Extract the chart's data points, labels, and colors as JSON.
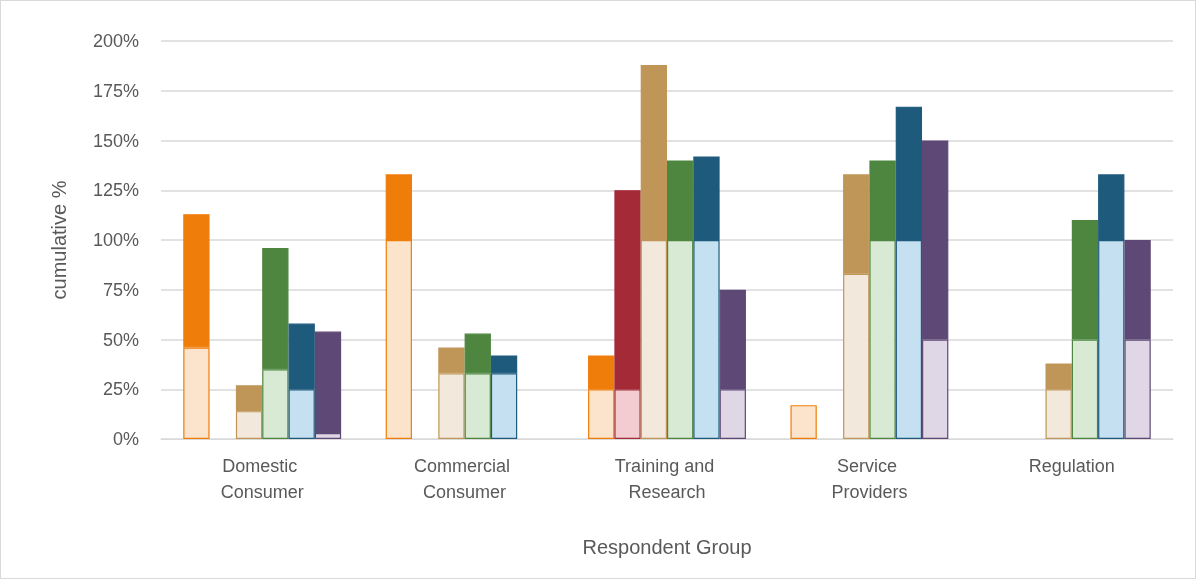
{
  "chart_data": {
    "type": "bar",
    "xlabel": "Respondent Group",
    "ylabel": "cumulative %",
    "categories": [
      "Domestic Consumer",
      "Commercial Consumer",
      "Training and Research",
      "Service Providers",
      "Regulation"
    ],
    "series": [
      {
        "color": "#fce4cc",
        "base": [
          0,
          0,
          0,
          0,
          null
        ],
        "values": [
          46,
          100,
          25,
          17,
          null
        ]
      },
      {
        "color": "#ef7d0a",
        "base": [
          46,
          100,
          25,
          null,
          null
        ],
        "values": [
          67,
          33,
          17,
          null,
          null
        ]
      },
      {
        "color": "#f2ccd0",
        "base": [
          null,
          null,
          0,
          null,
          null
        ],
        "values": [
          null,
          null,
          25,
          null,
          null
        ]
      },
      {
        "color": "#a32a36",
        "base": [
          null,
          null,
          25,
          null,
          null
        ],
        "values": [
          null,
          null,
          100,
          null,
          null
        ]
      },
      {
        "color": "#f2e8dc",
        "base": [
          0,
          0,
          0,
          0,
          0
        ],
        "values": [
          14,
          33,
          100,
          83,
          25
        ]
      },
      {
        "color": "#c09658",
        "base": [
          14,
          33,
          100,
          83,
          25
        ],
        "values": [
          13,
          13,
          88,
          50,
          13
        ]
      },
      {
        "color": "#d9ead4",
        "base": [
          0,
          0,
          0,
          0,
          0
        ],
        "values": [
          35,
          33,
          100,
          100,
          50
        ]
      },
      {
        "color": "#4e8640",
        "base": [
          35,
          33,
          100,
          100,
          50
        ],
        "values": [
          61,
          20,
          40,
          40,
          60
        ]
      },
      {
        "color": "#c5e0f0",
        "base": [
          0,
          0,
          0,
          0,
          0
        ],
        "values": [
          25,
          33,
          100,
          100,
          100
        ]
      },
      {
        "color": "#1e5a7c",
        "base": [
          25,
          33,
          100,
          100,
          100
        ],
        "values": [
          33,
          9,
          42,
          67,
          33
        ]
      },
      {
        "color": "#dfd6e6",
        "base": [
          0,
          null,
          0,
          0,
          0
        ],
        "values": [
          3,
          null,
          25,
          50,
          50
        ]
      },
      {
        "color": "#5e4876",
        "base": [
          3,
          null,
          25,
          50,
          50
        ],
        "values": [
          51,
          null,
          50,
          100,
          50
        ]
      }
    ],
    "ylim": [
      0,
      200
    ],
    "yticks": [
      {
        "value": 0,
        "label": "0%"
      },
      {
        "value": 25,
        "label": "25%"
      },
      {
        "value": 50,
        "label": "50%"
      },
      {
        "value": 75,
        "label": "75%"
      },
      {
        "value": 100,
        "label": "100%"
      },
      {
        "value": 125,
        "label": "125%"
      },
      {
        "value": 150,
        "label": "150%"
      },
      {
        "value": 175,
        "label": "175%"
      },
      {
        "value": 200,
        "label": "200%"
      }
    ],
    "grid": "y"
  }
}
